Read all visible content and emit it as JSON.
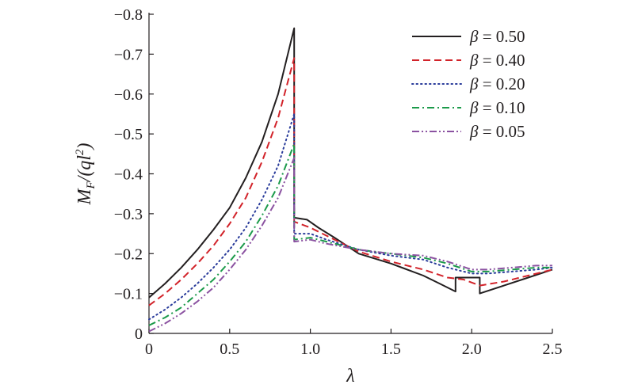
{
  "chart_data": {
    "type": "line",
    "xlabel": "λ",
    "ylabel": "M_F/(ql^2)",
    "xlim": [
      0,
      2.5
    ],
    "ylim": [
      0,
      -0.8
    ],
    "y_axis_inverted": true,
    "grid": false,
    "legend_position": "top-right",
    "x_ticks": [
      "0",
      "0.5",
      "1.0",
      "1.5",
      "2.0",
      "2.5"
    ],
    "x_tick_values": [
      0,
      0.5,
      1.0,
      1.5,
      2.0,
      2.5
    ],
    "y_ticks": [
      "0",
      "−0.1",
      "−0.2",
      "−0.3",
      "−0.4",
      "−0.5",
      "−0.6",
      "−0.7",
      "−0.8"
    ],
    "y_tick_values": [
      0,
      -0.1,
      -0.2,
      -0.3,
      -0.4,
      -0.5,
      -0.6,
      -0.7,
      -0.8
    ],
    "series": [
      {
        "name": "β = 0.50",
        "color": "#231f20",
        "dash": "solid",
        "points": [
          [
            0,
            -0.09
          ],
          [
            0.1,
            -0.125
          ],
          [
            0.2,
            -0.165
          ],
          [
            0.3,
            -0.21
          ],
          [
            0.4,
            -0.26
          ],
          [
            0.5,
            -0.315
          ],
          [
            0.6,
            -0.39
          ],
          [
            0.7,
            -0.48
          ],
          [
            0.8,
            -0.6
          ],
          [
            0.9,
            -0.765
          ],
          [
            0.9,
            -0.29
          ],
          [
            0.98,
            -0.285
          ],
          [
            1.05,
            -0.265
          ],
          [
            1.15,
            -0.24
          ],
          [
            1.3,
            -0.2
          ],
          [
            1.5,
            -0.175
          ],
          [
            1.7,
            -0.145
          ],
          [
            1.8,
            -0.125
          ],
          [
            1.9,
            -0.105
          ],
          [
            1.9,
            -0.14
          ],
          [
            2.05,
            -0.14
          ],
          [
            2.05,
            -0.1
          ],
          [
            2.2,
            -0.12
          ],
          [
            2.35,
            -0.14
          ],
          [
            2.5,
            -0.16
          ]
        ]
      },
      {
        "name": "β = 0.40",
        "color": "#d2232a",
        "dash": "dashed",
        "points": [
          [
            0,
            -0.07
          ],
          [
            0.1,
            -0.1
          ],
          [
            0.2,
            -0.135
          ],
          [
            0.3,
            -0.175
          ],
          [
            0.4,
            -0.22
          ],
          [
            0.5,
            -0.275
          ],
          [
            0.6,
            -0.34
          ],
          [
            0.7,
            -0.43
          ],
          [
            0.8,
            -0.54
          ],
          [
            0.9,
            -0.69
          ],
          [
            0.9,
            -0.28
          ],
          [
            1.0,
            -0.265
          ],
          [
            1.1,
            -0.245
          ],
          [
            1.3,
            -0.205
          ],
          [
            1.5,
            -0.18
          ],
          [
            1.7,
            -0.16
          ],
          [
            1.85,
            -0.14
          ],
          [
            1.95,
            -0.135
          ],
          [
            2.05,
            -0.12
          ],
          [
            2.2,
            -0.13
          ],
          [
            2.35,
            -0.145
          ],
          [
            2.5,
            -0.16
          ]
        ]
      },
      {
        "name": "β = 0.20",
        "color": "#2a3c9b",
        "dash": "dotted",
        "points": [
          [
            0,
            -0.035
          ],
          [
            0.1,
            -0.06
          ],
          [
            0.2,
            -0.09
          ],
          [
            0.3,
            -0.125
          ],
          [
            0.4,
            -0.165
          ],
          [
            0.5,
            -0.21
          ],
          [
            0.6,
            -0.265
          ],
          [
            0.7,
            -0.335
          ],
          [
            0.8,
            -0.42
          ],
          [
            0.9,
            -0.55
          ],
          [
            0.9,
            -0.25
          ],
          [
            1.0,
            -0.25
          ],
          [
            1.1,
            -0.235
          ],
          [
            1.3,
            -0.21
          ],
          [
            1.5,
            -0.195
          ],
          [
            1.7,
            -0.185
          ],
          [
            1.85,
            -0.165
          ],
          [
            2.0,
            -0.15
          ],
          [
            2.1,
            -0.15
          ],
          [
            2.25,
            -0.155
          ],
          [
            2.4,
            -0.16
          ],
          [
            2.5,
            -0.165
          ]
        ]
      },
      {
        "name": "β = 0.10",
        "color": "#1b9a4a",
        "dash": "dashdot",
        "points": [
          [
            0,
            -0.02
          ],
          [
            0.1,
            -0.04
          ],
          [
            0.2,
            -0.065
          ],
          [
            0.3,
            -0.1
          ],
          [
            0.4,
            -0.135
          ],
          [
            0.5,
            -0.18
          ],
          [
            0.6,
            -0.23
          ],
          [
            0.7,
            -0.295
          ],
          [
            0.8,
            -0.37
          ],
          [
            0.9,
            -0.475
          ],
          [
            0.9,
            -0.235
          ],
          [
            1.0,
            -0.24
          ],
          [
            1.1,
            -0.23
          ],
          [
            1.3,
            -0.21
          ],
          [
            1.5,
            -0.2
          ],
          [
            1.7,
            -0.19
          ],
          [
            1.85,
            -0.175
          ],
          [
            2.0,
            -0.155
          ],
          [
            2.1,
            -0.155
          ],
          [
            2.25,
            -0.16
          ],
          [
            2.4,
            -0.165
          ],
          [
            2.5,
            -0.165
          ]
        ]
      },
      {
        "name": "β = 0.05",
        "color": "#8b52a1",
        "dash": "dashdotdot",
        "points": [
          [
            0,
            -0.005
          ],
          [
            0.1,
            -0.025
          ],
          [
            0.2,
            -0.05
          ],
          [
            0.3,
            -0.08
          ],
          [
            0.4,
            -0.115
          ],
          [
            0.5,
            -0.16
          ],
          [
            0.6,
            -0.21
          ],
          [
            0.7,
            -0.27
          ],
          [
            0.8,
            -0.34
          ],
          [
            0.9,
            -0.44
          ],
          [
            0.9,
            -0.23
          ],
          [
            1.0,
            -0.235
          ],
          [
            1.1,
            -0.225
          ],
          [
            1.3,
            -0.21
          ],
          [
            1.5,
            -0.2
          ],
          [
            1.7,
            -0.195
          ],
          [
            1.85,
            -0.18
          ],
          [
            2.0,
            -0.16
          ],
          [
            2.1,
            -0.16
          ],
          [
            2.25,
            -0.165
          ],
          [
            2.4,
            -0.17
          ],
          [
            2.5,
            -0.17
          ]
        ]
      }
    ]
  }
}
